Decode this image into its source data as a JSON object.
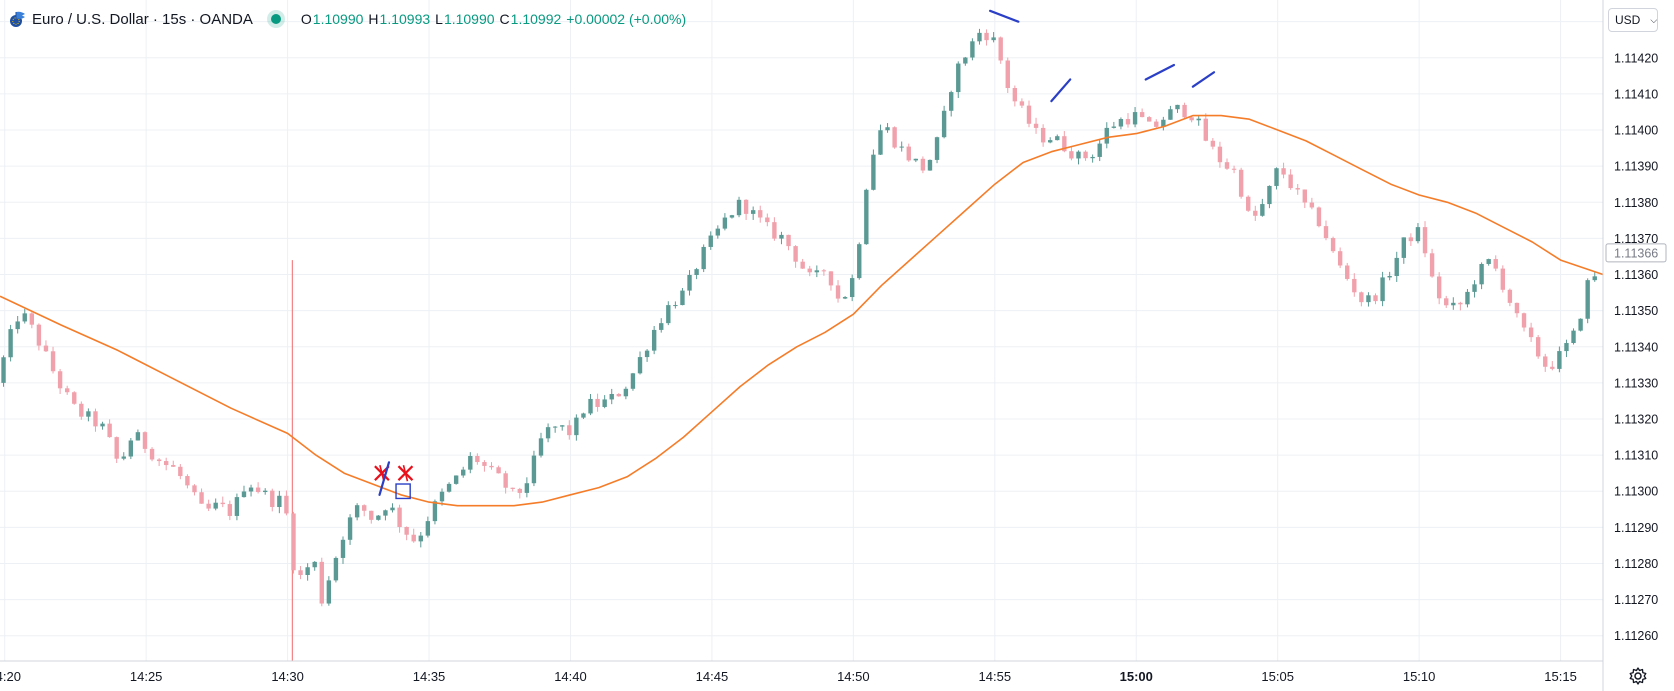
{
  "header": {
    "symbol_title": "Euro / U.S. Dollar · 15s · OANDA",
    "ohlc": {
      "o_label": "O",
      "o_value": "1.10990",
      "h_label": "H",
      "h_value": "1.10993",
      "l_label": "L",
      "l_value": "1.10990",
      "c_label": "C",
      "c_value": "1.10992",
      "change": "+0.00002 (+0.00%)"
    },
    "icons": {
      "logo": "forex-flag-icon",
      "status": "live-status-dot-icon"
    }
  },
  "price_scale": {
    "currency_label": "USD",
    "current_price_label": "1.11366",
    "settings_icon": "gear-icon"
  },
  "colors": {
    "up": "#5b9a94",
    "down": "#f0a1ab",
    "moving_average": "#f57c28",
    "grid": "#edf0f4",
    "drawings_blue": "#2a3fc6",
    "drawings_red": "#e8101b",
    "vertical_marker": "#f06a6a"
  },
  "chart_data": {
    "type": "candlestick",
    "title": "Euro / U.S. Dollar · 15s · OANDA",
    "interval_seconds": 15,
    "y_ticks": [
      1.1126,
      1.1127,
      1.1128,
      1.1129,
      1.113,
      1.1131,
      1.1132,
      1.1133,
      1.1134,
      1.1135,
      1.1136,
      1.1137,
      1.1138,
      1.1139,
      1.114,
      1.1141,
      1.1142,
      1.1143
    ],
    "y_tick_labels": [
      "1.11260",
      "1.11270",
      "1.11280",
      "1.11290",
      "1.11300",
      "1.11310",
      "1.11320",
      "1.11330",
      "1.11340",
      "1.11350",
      "1.11360",
      "1.11370",
      "1.11380",
      "1.11390",
      "1.11400",
      "1.11410",
      "1.11420",
      "1.11430"
    ],
    "ylim": [
      1.11253,
      1.11436
    ],
    "x_ticks": [
      "14:20",
      "14:25",
      "14:30",
      "14:35",
      "14:40",
      "14:45",
      "14:50",
      "14:55",
      "15:00",
      "15:05",
      "15:10",
      "15:15"
    ],
    "x_ticks_bold": [
      "15:00"
    ],
    "x_range": [
      "14:19:50",
      "15:16:30"
    ],
    "grid": true,
    "current_price": 1.11366,
    "ma_label": "",
    "moving_average": [
      [
        "14:19:50",
        1.11354
      ],
      [
        "14:22:00",
        1.11346
      ],
      [
        "14:24:00",
        1.11339
      ],
      [
        "14:26:00",
        1.11331
      ],
      [
        "14:28:00",
        1.11323
      ],
      [
        "14:30:00",
        1.11316
      ],
      [
        "14:31:00",
        1.1131
      ],
      [
        "14:32:00",
        1.11305
      ],
      [
        "14:33:00",
        1.11302
      ],
      [
        "14:34:00",
        1.11299
      ],
      [
        "14:35:00",
        1.11297
      ],
      [
        "14:36:00",
        1.11296
      ],
      [
        "14:37:00",
        1.11296
      ],
      [
        "14:38:00",
        1.11296
      ],
      [
        "14:39:00",
        1.11297
      ],
      [
        "14:40:00",
        1.11299
      ],
      [
        "14:41:00",
        1.11301
      ],
      [
        "14:42:00",
        1.11304
      ],
      [
        "14:43:00",
        1.11309
      ],
      [
        "14:44:00",
        1.11315
      ],
      [
        "14:45:00",
        1.11322
      ],
      [
        "14:46:00",
        1.11329
      ],
      [
        "14:47:00",
        1.11335
      ],
      [
        "14:48:00",
        1.1134
      ],
      [
        "14:49:00",
        1.11344
      ],
      [
        "14:50:00",
        1.11349
      ],
      [
        "14:51:00",
        1.11357
      ],
      [
        "14:52:00",
        1.11364
      ],
      [
        "14:53:00",
        1.11371
      ],
      [
        "14:54:00",
        1.11378
      ],
      [
        "14:55:00",
        1.11385
      ],
      [
        "14:56:00",
        1.11391
      ],
      [
        "14:57:00",
        1.11394
      ],
      [
        "14:58:00",
        1.11396
      ],
      [
        "14:59:00",
        1.11398
      ],
      [
        "15:00:00",
        1.11399
      ],
      [
        "15:01:00",
        1.11401
      ],
      [
        "15:02:00",
        1.11404
      ],
      [
        "15:03:00",
        1.11404
      ],
      [
        "15:04:00",
        1.11403
      ],
      [
        "15:05:00",
        1.114
      ],
      [
        "15:06:00",
        1.11397
      ],
      [
        "15:07:00",
        1.11393
      ],
      [
        "15:08:00",
        1.11389
      ],
      [
        "15:09:00",
        1.11385
      ],
      [
        "15:10:00",
        1.11382
      ],
      [
        "15:11:00",
        1.1138
      ],
      [
        "15:12:00",
        1.11377
      ],
      [
        "15:13:00",
        1.11373
      ],
      [
        "15:14:00",
        1.11369
      ],
      [
        "15:15:00",
        1.11364
      ],
      [
        "15:16:30",
        1.1136
      ]
    ],
    "candle_keyframes": [
      [
        "14:19:50",
        1.1133
      ],
      [
        "14:20:20",
        1.11343
      ],
      [
        "14:20:40",
        1.1135
      ],
      [
        "14:21:10",
        1.11344
      ],
      [
        "14:21:40",
        1.11336
      ],
      [
        "14:22:10",
        1.11328
      ],
      [
        "14:22:40",
        1.11322
      ],
      [
        "14:23:10",
        1.1132
      ],
      [
        "14:23:40",
        1.11317
      ],
      [
        "14:24:10",
        1.11307
      ],
      [
        "14:24:40",
        1.11316
      ],
      [
        "14:25:10",
        1.11312
      ],
      [
        "14:25:40",
        1.11308
      ],
      [
        "14:26:10",
        1.11306
      ],
      [
        "14:26:40",
        1.113
      ],
      [
        "14:27:10",
        1.11294
      ],
      [
        "14:27:40",
        1.11296
      ],
      [
        "14:28:10",
        1.11294
      ],
      [
        "14:28:40",
        1.11303
      ],
      [
        "14:29:10",
        1.113
      ],
      [
        "14:29:40",
        1.11297
      ],
      [
        "14:30:00",
        1.11298
      ],
      [
        "14:30:20",
        1.1128
      ],
      [
        "14:30:40",
        1.11275
      ],
      [
        "14:31:00",
        1.11283
      ],
      [
        "14:31:20",
        1.1127
      ],
      [
        "14:31:40",
        1.11278
      ],
      [
        "14:32:10",
        1.1129
      ],
      [
        "14:32:40",
        1.11296
      ],
      [
        "14:33:10",
        1.11292
      ],
      [
        "14:33:40",
        1.11297
      ],
      [
        "14:34:10",
        1.1129
      ],
      [
        "14:34:40",
        1.11286
      ],
      [
        "14:35:10",
        1.11294
      ],
      [
        "14:35:40",
        1.113
      ],
      [
        "14:36:10",
        1.11304
      ],
      [
        "14:36:40",
        1.1131
      ],
      [
        "14:37:10",
        1.11306
      ],
      [
        "14:37:40",
        1.11303
      ],
      [
        "14:38:10",
        1.11298
      ],
      [
        "14:38:40",
        1.11304
      ],
      [
        "14:39:10",
        1.11316
      ],
      [
        "14:39:40",
        1.11318
      ],
      [
        "14:40:10",
        1.11316
      ],
      [
        "14:40:40",
        1.11324
      ],
      [
        "14:41:10",
        1.11324
      ],
      [
        "14:41:40",
        1.11326
      ],
      [
        "14:42:10",
        1.1133
      ],
      [
        "14:42:40",
        1.11338
      ],
      [
        "14:43:10",
        1.11346
      ],
      [
        "14:43:40",
        1.11352
      ],
      [
        "14:44:10",
        1.11355
      ],
      [
        "14:44:40",
        1.11364
      ],
      [
        "14:45:10",
        1.1137
      ],
      [
        "14:45:40",
        1.11376
      ],
      [
        "14:46:10",
        1.1138
      ],
      [
        "14:46:40",
        1.11376
      ],
      [
        "14:47:10",
        1.11372
      ],
      [
        "14:47:40",
        1.1137
      ],
      [
        "14:48:10",
        1.11364
      ],
      [
        "14:48:40",
        1.11358
      ],
      [
        "14:49:10",
        1.11362
      ],
      [
        "14:49:40",
        1.11352
      ],
      [
        "14:50:10",
        1.1136
      ],
      [
        "14:50:40",
        1.1139
      ],
      [
        "14:51:10",
        1.11402
      ],
      [
        "14:51:40",
        1.11396
      ],
      [
        "14:52:10",
        1.11392
      ],
      [
        "14:52:40",
        1.11389
      ],
      [
        "14:53:10",
        1.11398
      ],
      [
        "14:53:40",
        1.11415
      ],
      [
        "14:54:10",
        1.11422
      ],
      [
        "14:54:40",
        1.11428
      ],
      [
        "14:55:10",
        1.11424
      ],
      [
        "14:55:40",
        1.1141
      ],
      [
        "14:56:10",
        1.11404
      ],
      [
        "14:56:40",
        1.11398
      ],
      [
        "14:57:10",
        1.11398
      ],
      [
        "14:57:40",
        1.11395
      ],
      [
        "14:58:10",
        1.11392
      ],
      [
        "14:58:40",
        1.11394
      ],
      [
        "14:59:10",
        1.11401
      ],
      [
        "14:59:40",
        1.11403
      ],
      [
        "15:00:10",
        1.11404
      ],
      [
        "15:00:40",
        1.114
      ],
      [
        "15:01:10",
        1.11404
      ],
      [
        "15:01:40",
        1.11406
      ],
      [
        "15:02:10",
        1.11404
      ],
      [
        "15:02:40",
        1.11396
      ],
      [
        "15:03:10",
        1.11391
      ],
      [
        "15:03:40",
        1.11388
      ],
      [
        "15:04:10",
        1.11374
      ],
      [
        "15:04:40",
        1.1138
      ],
      [
        "15:05:10",
        1.1139
      ],
      [
        "15:05:40",
        1.11384
      ],
      [
        "15:06:10",
        1.11378
      ],
      [
        "15:06:40",
        1.11374
      ],
      [
        "15:07:10",
        1.11364
      ],
      [
        "15:07:40",
        1.11358
      ],
      [
        "15:08:10",
        1.11352
      ],
      [
        "15:08:40",
        1.11355
      ],
      [
        "15:09:10",
        1.11362
      ],
      [
        "15:09:40",
        1.1137
      ],
      [
        "15:10:10",
        1.11372
      ],
      [
        "15:10:40",
        1.11356
      ],
      [
        "15:11:10",
        1.1135
      ],
      [
        "15:11:40",
        1.11352
      ],
      [
        "15:12:10",
        1.1136
      ],
      [
        "15:12:40",
        1.11364
      ],
      [
        "15:13:10",
        1.11356
      ],
      [
        "15:13:40",
        1.11346
      ],
      [
        "15:14:10",
        1.1134
      ],
      [
        "15:14:40",
        1.11334
      ],
      [
        "15:15:10",
        1.11338
      ],
      [
        "15:15:40",
        1.11344
      ],
      [
        "15:16:10",
        1.1136
      ]
    ],
    "candle_volatility": 3.8e-05,
    "vertical_marker": {
      "time": "14:30:10",
      "high": 1.11364,
      "low": 1.11253
    },
    "annotations": [
      {
        "type": "cross",
        "time": "14:33:20",
        "price": 1.11305
      },
      {
        "type": "cross",
        "time": "14:34:10",
        "price": 1.11305
      },
      {
        "type": "segment",
        "from": [
          "14:33:15",
          1.11299
        ],
        "to": [
          "14:33:35",
          1.11308
        ]
      },
      {
        "type": "rect",
        "from": [
          "14:33:50",
          1.11298
        ],
        "to": [
          "14:34:20",
          1.11302
        ]
      },
      {
        "type": "segment",
        "from": [
          "14:54:50",
          1.11433
        ],
        "to": [
          "14:55:50",
          1.1143
        ]
      },
      {
        "type": "segment",
        "from": [
          "14:57:00",
          1.11408
        ],
        "to": [
          "14:57:40",
          1.11414
        ]
      },
      {
        "type": "segment",
        "from": [
          "15:00:20",
          1.11414
        ],
        "to": [
          "15:01:20",
          1.11418
        ]
      },
      {
        "type": "segment",
        "from": [
          "15:02:00",
          1.11412
        ],
        "to": [
          "15:02:45",
          1.11416
        ]
      }
    ]
  }
}
